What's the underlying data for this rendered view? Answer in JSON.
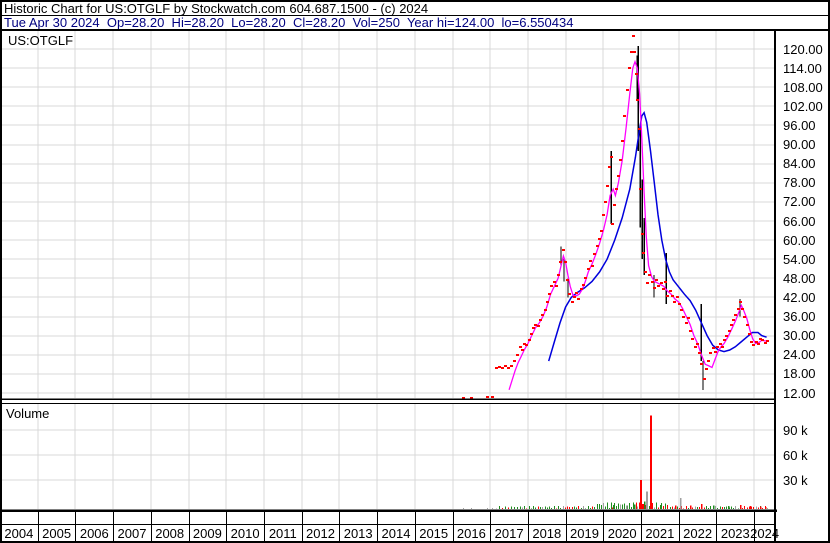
{
  "header": {
    "line1": "Historic Chart for US:OTGLF by Stockwatch.com 604.687.1500 - (c) 2024",
    "line2": "Tue Apr 30 2024  Op=28.20  Hi=28.20  Lo=28.20  Cl=28.20  Vol=250  Year hi=124.00  lo=6.550434"
  },
  "price_panel": {
    "label": "US:OTGLF"
  },
  "volume_panel": {
    "label": "Volume"
  },
  "price_axis_labels": [
    "120.00",
    "114.00",
    "108.00",
    "102.00",
    "96.00",
    "90.00",
    "84.00",
    "78.00",
    "72.00",
    "66.00",
    "60.00",
    "54.00",
    "48.00",
    "42.00",
    "36.00",
    "30.00",
    "24.00",
    "18.00",
    "12.00"
  ],
  "volume_axis_labels": [
    {
      "text": "90 k",
      "k": 90
    },
    {
      "text": "60 k",
      "k": 60
    },
    {
      "text": "30 k",
      "k": 30
    }
  ],
  "x_axis_years": [
    "2004",
    "2005",
    "2006",
    "2007",
    "2008",
    "2009",
    "2010",
    "2011",
    "2012",
    "2013",
    "2014",
    "2015",
    "2016",
    "2017",
    "2018",
    "2019",
    "2020",
    "2021",
    "2022",
    "2023",
    "2024"
  ],
  "chart_data": {
    "type": "line",
    "symbol": "US:OTGLF",
    "x_range_years": [
      2004,
      2024.33
    ],
    "price_axis": {
      "min": 12,
      "max": 120,
      "step": 6
    },
    "volume_axis_k": [
      30,
      60,
      90
    ],
    "legend": "red marks = weekly closes, magenta = fast moving average, blue = slow moving average, black = high-low range bars",
    "colors": {
      "marks": "#ff0000",
      "ma_fast": "#ff00ff",
      "ma_slow": "#0000dd",
      "range": "#000000",
      "grid": "#d9d9d9",
      "vol_up": "#1e8c1e",
      "vol_down": "#ff0000",
      "vol_neutral": "#a0a0a0",
      "frame": "#000000",
      "header_info": "#000080"
    },
    "isolated_marks": [
      [
        2016.28,
        10.5
      ],
      [
        2016.5,
        10.5
      ],
      [
        2016.92,
        10.6
      ],
      [
        2017.06,
        10.7
      ]
    ],
    "weekly_close_marks": [
      [
        2017.15,
        19.8
      ],
      [
        2017.22,
        20.3
      ],
      [
        2017.3,
        19.9
      ],
      [
        2017.38,
        20.4
      ],
      [
        2017.46,
        20.0
      ],
      [
        2017.54,
        20.5
      ],
      [
        2017.62,
        22.0
      ],
      [
        2017.7,
        24.0
      ],
      [
        2017.78,
        26.5
      ],
      [
        2017.84,
        25.5
      ],
      [
        2017.9,
        27.5
      ],
      [
        2017.96,
        27.0
      ],
      [
        2018.02,
        28.5
      ],
      [
        2018.08,
        30.5
      ],
      [
        2018.14,
        32.5
      ],
      [
        2018.2,
        33.5
      ],
      [
        2018.26,
        33.0
      ],
      [
        2018.32,
        35.0
      ],
      [
        2018.38,
        36.5
      ],
      [
        2018.44,
        38.0
      ],
      [
        2018.5,
        40.5
      ],
      [
        2018.56,
        43.0
      ],
      [
        2018.62,
        45.5
      ],
      [
        2018.68,
        47.0
      ],
      [
        2018.74,
        45.5
      ],
      [
        2018.8,
        49.0
      ],
      [
        2018.86,
        53.0
      ],
      [
        2018.92,
        57.0
      ],
      [
        2018.98,
        53.0
      ],
      [
        2019.04,
        47.5
      ],
      [
        2019.1,
        43.0
      ],
      [
        2019.16,
        40.5
      ],
      [
        2019.22,
        42.0
      ],
      [
        2019.28,
        43.5
      ],
      [
        2019.34,
        41.5
      ],
      [
        2019.4,
        44.5
      ],
      [
        2019.46,
        46.0
      ],
      [
        2019.52,
        48.0
      ],
      [
        2019.58,
        51.0
      ],
      [
        2019.64,
        53.5
      ],
      [
        2019.7,
        52.0
      ],
      [
        2019.76,
        55.5
      ],
      [
        2019.82,
        58.0
      ],
      [
        2019.88,
        60.5
      ],
      [
        2019.94,
        63.0
      ],
      [
        2020.0,
        68.0
      ],
      [
        2020.05,
        72.0
      ],
      [
        2020.1,
        77.0
      ],
      [
        2020.15,
        83.0
      ],
      [
        2020.2,
        86.0
      ],
      [
        2020.24,
        65.0
      ],
      [
        2020.28,
        71.0
      ],
      [
        2020.33,
        76.0
      ],
      [
        2020.38,
        80.0
      ],
      [
        2020.44,
        85.0
      ],
      [
        2020.5,
        91.0
      ],
      [
        2020.56,
        99.0
      ],
      [
        2020.62,
        107.0
      ],
      [
        2020.68,
        114.0
      ],
      [
        2020.73,
        119.0
      ],
      [
        2020.78,
        124.0
      ],
      [
        2020.82,
        119.0
      ],
      [
        2020.86,
        112.0
      ],
      [
        2020.9,
        104.0
      ],
      [
        2020.94,
        95.0
      ],
      [
        2020.98,
        76.0
      ],
      [
        2021.02,
        62.0
      ],
      [
        2021.06,
        56.0
      ],
      [
        2021.1,
        50.0
      ],
      [
        2021.16,
        46.5
      ],
      [
        2021.22,
        49.0
      ],
      [
        2021.28,
        47.0
      ],
      [
        2021.34,
        45.0
      ],
      [
        2021.4,
        47.5
      ],
      [
        2021.46,
        45.5
      ],
      [
        2021.52,
        46.5
      ],
      [
        2021.58,
        44.5
      ],
      [
        2021.64,
        47.0
      ],
      [
        2021.7,
        42.5
      ],
      [
        2021.76,
        44.0
      ],
      [
        2021.82,
        42.5
      ],
      [
        2021.88,
        40.5
      ],
      [
        2021.94,
        42.0
      ],
      [
        2022.0,
        40.0
      ],
      [
        2022.06,
        38.0
      ],
      [
        2022.12,
        36.0
      ],
      [
        2022.18,
        34.0
      ],
      [
        2022.24,
        35.5
      ],
      [
        2022.3,
        31.5
      ],
      [
        2022.36,
        29.0
      ],
      [
        2022.42,
        26.5
      ],
      [
        2022.48,
        27.5
      ],
      [
        2022.54,
        24.5
      ],
      [
        2022.6,
        21.0
      ],
      [
        2022.66,
        16.5
      ],
      [
        2022.72,
        19.5
      ],
      [
        2022.78,
        22.0
      ],
      [
        2022.84,
        24.5
      ],
      [
        2022.9,
        26.0
      ],
      [
        2022.96,
        25.0
      ],
      [
        2023.02,
        26.5
      ],
      [
        2023.08,
        27.5
      ],
      [
        2023.14,
        26.5
      ],
      [
        2023.2,
        28.5
      ],
      [
        2023.26,
        30.0
      ],
      [
        2023.32,
        31.5
      ],
      [
        2023.38,
        33.5
      ],
      [
        2023.44,
        35.0
      ],
      [
        2023.5,
        36.5
      ],
      [
        2023.56,
        38.5
      ],
      [
        2023.62,
        40.5
      ],
      [
        2023.68,
        38.5
      ],
      [
        2023.74,
        36.0
      ],
      [
        2023.8,
        33.5
      ],
      [
        2023.86,
        30.5
      ],
      [
        2023.92,
        28.0
      ],
      [
        2023.98,
        27.0
      ],
      [
        2024.04,
        28.0
      ],
      [
        2024.1,
        27.5
      ],
      [
        2024.16,
        29.0
      ],
      [
        2024.22,
        28.5
      ],
      [
        2024.28,
        27.8
      ],
      [
        2024.33,
        28.2
      ]
    ],
    "range_bars": [
      [
        2018.88,
        52,
        58
      ],
      [
        2018.96,
        47,
        54
      ],
      [
        2019.06,
        42,
        48
      ],
      [
        2020.2,
        65,
        88
      ],
      [
        2020.88,
        104,
        118
      ],
      [
        2020.93,
        88,
        121
      ],
      [
        2020.97,
        64,
        96
      ],
      [
        2021.02,
        54,
        79
      ],
      [
        2021.07,
        49,
        67
      ],
      [
        2021.35,
        42,
        49
      ],
      [
        2021.65,
        40,
        56
      ],
      [
        2022.58,
        22,
        40
      ],
      [
        2022.64,
        13,
        22
      ],
      [
        2023.62,
        36,
        41.5
      ]
    ],
    "ma_fast_magenta": [
      [
        2017.5,
        13
      ],
      [
        2017.58,
        16
      ],
      [
        2017.66,
        19
      ],
      [
        2017.74,
        21.5
      ],
      [
        2017.82,
        23.5
      ],
      [
        2017.9,
        25.5
      ],
      [
        2018.0,
        27.5
      ],
      [
        2018.1,
        30
      ],
      [
        2018.2,
        32.5
      ],
      [
        2018.3,
        34
      ],
      [
        2018.4,
        36
      ],
      [
        2018.5,
        39
      ],
      [
        2018.6,
        43
      ],
      [
        2018.7,
        45.5
      ],
      [
        2018.8,
        48
      ],
      [
        2018.88,
        52
      ],
      [
        2018.94,
        55
      ],
      [
        2019.0,
        53
      ],
      [
        2019.06,
        49
      ],
      [
        2019.12,
        45.5
      ],
      [
        2019.2,
        42.5
      ],
      [
        2019.28,
        42.5
      ],
      [
        2019.36,
        43
      ],
      [
        2019.44,
        44.5
      ],
      [
        2019.52,
        47
      ],
      [
        2019.6,
        50
      ],
      [
        2019.7,
        52.5
      ],
      [
        2019.8,
        55.5
      ],
      [
        2019.9,
        59
      ],
      [
        2020.0,
        63
      ],
      [
        2020.1,
        68
      ],
      [
        2020.18,
        74
      ],
      [
        2020.26,
        76
      ],
      [
        2020.32,
        74
      ],
      [
        2020.4,
        78
      ],
      [
        2020.5,
        85
      ],
      [
        2020.6,
        95
      ],
      [
        2020.7,
        106
      ],
      [
        2020.78,
        114
      ],
      [
        2020.84,
        116
      ],
      [
        2020.9,
        114
      ],
      [
        2020.96,
        106
      ],
      [
        2021.02,
        92
      ],
      [
        2021.08,
        75
      ],
      [
        2021.14,
        61
      ],
      [
        2021.2,
        52
      ],
      [
        2021.28,
        48.5
      ],
      [
        2021.36,
        47
      ],
      [
        2021.44,
        46.5
      ],
      [
        2021.52,
        46
      ],
      [
        2021.6,
        45.5
      ],
      [
        2021.7,
        44
      ],
      [
        2021.8,
        43
      ],
      [
        2021.9,
        41.5
      ],
      [
        2022.0,
        40.5
      ],
      [
        2022.1,
        38.5
      ],
      [
        2022.2,
        36
      ],
      [
        2022.3,
        33.5
      ],
      [
        2022.4,
        30
      ],
      [
        2022.5,
        27.5
      ],
      [
        2022.6,
        24
      ],
      [
        2022.7,
        21
      ],
      [
        2022.8,
        20.5
      ],
      [
        2022.88,
        20
      ],
      [
        2022.96,
        22.5
      ],
      [
        2023.04,
        25
      ],
      [
        2023.12,
        26.5
      ],
      [
        2023.2,
        27.5
      ],
      [
        2023.3,
        29.5
      ],
      [
        2023.4,
        32
      ],
      [
        2023.5,
        34.5
      ],
      [
        2023.58,
        37
      ],
      [
        2023.66,
        39.5
      ],
      [
        2023.72,
        38
      ],
      [
        2023.8,
        35.5
      ],
      [
        2023.88,
        32
      ],
      [
        2023.96,
        29
      ],
      [
        2024.04,
        27.5
      ],
      [
        2024.12,
        27.8
      ],
      [
        2024.2,
        28.5
      ],
      [
        2024.33,
        28.3
      ]
    ],
    "ma_slow_blue": [
      [
        2018.55,
        22
      ],
      [
        2018.7,
        28
      ],
      [
        2018.85,
        34
      ],
      [
        2019.0,
        39
      ],
      [
        2019.15,
        42
      ],
      [
        2019.3,
        43.5
      ],
      [
        2019.5,
        45
      ],
      [
        2019.7,
        47
      ],
      [
        2019.9,
        50
      ],
      [
        2020.1,
        54
      ],
      [
        2020.3,
        60
      ],
      [
        2020.5,
        67
      ],
      [
        2020.7,
        76
      ],
      [
        2020.85,
        86
      ],
      [
        2020.95,
        94
      ],
      [
        2021.02,
        99
      ],
      [
        2021.08,
        100
      ],
      [
        2021.15,
        97
      ],
      [
        2021.25,
        88
      ],
      [
        2021.35,
        78
      ],
      [
        2021.45,
        68
      ],
      [
        2021.55,
        60
      ],
      [
        2021.65,
        54
      ],
      [
        2021.75,
        50
      ],
      [
        2021.85,
        47.5
      ],
      [
        2021.95,
        46
      ],
      [
        2022.05,
        44.5
      ],
      [
        2022.15,
        43
      ],
      [
        2022.3,
        41
      ],
      [
        2022.45,
        38
      ],
      [
        2022.6,
        34
      ],
      [
        2022.75,
        30
      ],
      [
        2022.9,
        27
      ],
      [
        2023.05,
        25.5
      ],
      [
        2023.2,
        25
      ],
      [
        2023.35,
        25.5
      ],
      [
        2023.5,
        26.5
      ],
      [
        2023.65,
        28
      ],
      [
        2023.8,
        29.5
      ],
      [
        2023.95,
        31
      ],
      [
        2024.1,
        31
      ],
      [
        2024.2,
        30
      ],
      [
        2024.33,
        29.5
      ]
    ],
    "volume_spikes_k": [
      [
        2020.25,
        5,
        "up"
      ],
      [
        2020.6,
        4,
        "neutral"
      ],
      [
        2020.8,
        5.5,
        "up"
      ],
      [
        2020.95,
        8,
        "down"
      ],
      [
        2020.99,
        35,
        "down"
      ],
      [
        2021.08,
        9,
        "up"
      ],
      [
        2021.15,
        21,
        "neutral"
      ],
      [
        2021.27,
        112,
        "down"
      ],
      [
        2021.5,
        5,
        "up"
      ],
      [
        2021.9,
        4,
        "down"
      ],
      [
        2022.03,
        13,
        "neutral"
      ],
      [
        2022.3,
        4.5,
        "down"
      ],
      [
        2022.6,
        6,
        "down"
      ],
      [
        2022.9,
        4,
        "up"
      ],
      [
        2023.3,
        3.5,
        "up"
      ],
      [
        2023.62,
        5,
        "down"
      ],
      [
        2023.9,
        3.5,
        "down"
      ],
      [
        2024.15,
        3,
        "down"
      ],
      [
        2024.28,
        2.5,
        "down"
      ]
    ],
    "volume_base_range_k": [
      0.4,
      3.5
    ]
  }
}
